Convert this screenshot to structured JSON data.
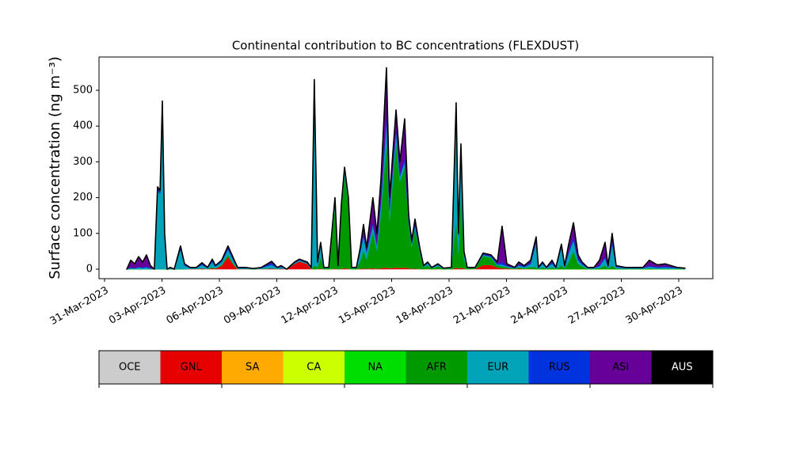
{
  "chart_data": {
    "type": "stacked_area",
    "title": "Continental contribution to BC concentrations (FLEXDUST)",
    "y_label": "Surface concentration (ng m⁻³)",
    "x": [
      1.16,
      1.37,
      1.57,
      1.78,
      1.99,
      2.19,
      2.4,
      2.6,
      2.77,
      2.9,
      3.02,
      3.14,
      3.27,
      3.43,
      3.64,
      3.97,
      4.18,
      4.47,
      4.8,
      5.09,
      5.38,
      5.63,
      5.79,
      6.12,
      6.45,
      6.74,
      6.95,
      7.36,
      7.78,
      8.19,
      8.73,
      9.02,
      9.23,
      9.52,
      9.93,
      10.18,
      10.59,
      10.8,
      10.96,
      11.13,
      11.29,
      11.46,
      11.71,
      12.04,
      12.2,
      12.37,
      12.54,
      12.74,
      12.91,
      13.16,
      13.36,
      13.53,
      13.69,
      14.02,
      14.23,
      14.44,
      14.73,
      14.89,
      15.23,
      15.43,
      15.68,
      15.89,
      16.05,
      16.22,
      16.47,
      16.67,
      16.88,
      17.09,
      17.42,
      17.71,
      18.12,
      18.37,
      18.49,
      18.62,
      18.78,
      18.95,
      19.36,
      19.78,
      20.19,
      20.52,
      20.77,
      21.02,
      21.43,
      21.64,
      21.93,
      22.26,
      22.55,
      22.67,
      22.88,
      23.09,
      23.38,
      23.58,
      23.87,
      24.04,
      24.25,
      24.5,
      24.74,
      24.95,
      25.24,
      25.57,
      25.86,
      26.15,
      26.31,
      26.52,
      26.73,
      27.22,
      27.64,
      28.13,
      28.46,
      28.88,
      29.29,
      29.91,
      30.33
    ],
    "series": [
      {
        "name": "OCE",
        "color": "#cccccc",
        "values": [
          0,
          0,
          0,
          0,
          0,
          0,
          0,
          0,
          0,
          0,
          0,
          0,
          0,
          0,
          0,
          0,
          0,
          0,
          0,
          0,
          0,
          0,
          0,
          0,
          0,
          0,
          0,
          0,
          0,
          0,
          0,
          0,
          0,
          0,
          0,
          0,
          0,
          0,
          0,
          0,
          0,
          0,
          0,
          0,
          0,
          0,
          0,
          0,
          0,
          0,
          0,
          0,
          0,
          0,
          0,
          0,
          0,
          0,
          0,
          0,
          0,
          0,
          0,
          0,
          0,
          0,
          0,
          0,
          0,
          0,
          0,
          0,
          0,
          0,
          0,
          0,
          0,
          0,
          0,
          0,
          0,
          0,
          0,
          0,
          0,
          0,
          0,
          0,
          0,
          0,
          0,
          0,
          0,
          0,
          0,
          0,
          0,
          0,
          0,
          0,
          0,
          0,
          0,
          0,
          0,
          0,
          0,
          0,
          0,
          0,
          0,
          0,
          0
        ]
      },
      {
        "name": "GNL",
        "color": "#e60000",
        "values": [
          0,
          0,
          0,
          0,
          0,
          0,
          0,
          0,
          0,
          0,
          0,
          0,
          0,
          0,
          0,
          0,
          0,
          1,
          1,
          2,
          1,
          3,
          2,
          10,
          35,
          12,
          1,
          1,
          0,
          1,
          2,
          1,
          2,
          0,
          15,
          22,
          15,
          1,
          0,
          1,
          2,
          0,
          0,
          2,
          0,
          2,
          3,
          2,
          0,
          0,
          2,
          2,
          2,
          3,
          2,
          3,
          5,
          3,
          5,
          4,
          5,
          3,
          2,
          2,
          1,
          0,
          1,
          0,
          1,
          0,
          0,
          5,
          2,
          5,
          2,
          0,
          1,
          12,
          12,
          5,
          3,
          2,
          1,
          2,
          1,
          1,
          0,
          0,
          0,
          0,
          0,
          0,
          0,
          0,
          0,
          0,
          0,
          0,
          0,
          0,
          0,
          0,
          0,
          0,
          0,
          0,
          0,
          0,
          0,
          0,
          0,
          0,
          0
        ]
      },
      {
        "name": "SA",
        "color": "#ffaa00",
        "values": [
          0,
          0,
          0,
          0,
          0,
          0,
          0,
          0,
          0,
          0,
          0,
          0,
          0,
          0,
          0,
          0,
          0,
          0,
          0,
          0,
          0,
          0,
          0,
          0,
          0,
          0,
          0,
          0,
          0,
          0,
          0,
          0,
          0,
          0,
          0,
          0,
          0,
          0,
          0,
          0,
          0,
          0,
          0,
          0,
          0,
          0,
          0,
          0,
          0,
          0,
          0,
          0,
          0,
          0,
          0,
          0,
          0,
          0,
          0,
          0,
          0,
          0,
          0,
          0,
          0,
          0,
          0,
          0,
          0,
          0,
          0,
          0,
          0,
          0,
          0,
          0,
          0,
          0,
          0,
          0,
          0,
          0,
          0,
          0,
          0,
          0,
          0,
          0,
          0,
          0,
          0,
          0,
          0,
          0,
          0,
          0,
          0,
          0,
          0,
          0,
          0,
          0,
          0,
          0,
          0,
          0,
          0,
          0,
          0,
          0,
          0,
          0,
          0
        ]
      },
      {
        "name": "CA",
        "color": "#ccff00",
        "values": [
          0,
          0,
          0,
          0,
          0,
          0,
          0,
          0,
          0,
          0,
          0,
          0,
          0,
          0,
          0,
          0,
          0,
          0,
          0,
          0,
          0,
          0,
          0,
          0,
          0,
          0,
          0,
          0,
          0,
          0,
          0,
          0,
          0,
          0,
          0,
          0,
          0,
          0,
          0,
          0,
          0,
          0,
          0,
          0,
          0,
          0,
          0,
          0,
          0,
          0,
          0,
          0,
          0,
          0,
          0,
          0,
          0,
          0,
          0,
          0,
          0,
          0,
          0,
          0,
          0,
          0,
          0,
          0,
          0,
          0,
          0,
          0,
          0,
          0,
          0,
          0,
          0,
          0,
          0,
          0,
          0,
          0,
          0,
          0,
          0,
          0,
          0,
          0,
          0,
          0,
          0,
          0,
          0,
          0,
          0,
          0,
          0,
          0,
          0,
          0,
          0,
          0,
          0,
          0,
          0,
          0,
          0,
          0,
          0,
          0,
          0,
          0,
          0
        ]
      },
      {
        "name": "NA",
        "color": "#00dd00",
        "values": [
          0,
          0,
          0,
          0,
          0,
          0,
          0,
          0,
          0,
          0,
          0,
          0,
          0,
          0,
          0,
          0,
          0,
          0,
          0,
          0,
          0,
          0,
          0,
          0,
          0,
          0,
          0,
          0,
          0,
          0,
          0,
          0,
          0,
          0,
          0,
          0,
          0,
          0,
          0,
          0,
          0,
          0,
          0,
          0,
          0,
          0,
          0,
          0,
          0,
          0,
          0,
          0,
          0,
          0,
          0,
          0,
          0,
          0,
          0,
          0,
          0,
          0,
          0,
          0,
          0,
          0,
          0,
          0,
          0,
          0,
          0,
          0,
          0,
          0,
          0,
          0,
          0,
          0,
          0,
          0,
          0,
          0,
          0,
          0,
          0,
          0,
          0,
          0,
          0,
          0,
          0,
          0,
          0,
          0,
          0,
          0,
          0,
          0,
          0,
          0,
          0,
          0,
          0,
          0,
          0,
          0,
          0,
          0,
          0,
          0,
          0,
          0,
          0
        ]
      },
      {
        "name": "AFR",
        "color": "#009900",
        "values": [
          0,
          0,
          0,
          0,
          0,
          0,
          0,
          0,
          0,
          0,
          0,
          0,
          0,
          0,
          0,
          0,
          0,
          0,
          0,
          0,
          0,
          2,
          0,
          2,
          5,
          3,
          0,
          0,
          0,
          0,
          0,
          0,
          0,
          0,
          0,
          0,
          0,
          0,
          10,
          5,
          30,
          2,
          2,
          170,
          5,
          160,
          260,
          180,
          2,
          2,
          20,
          50,
          25,
          100,
          50,
          150,
          350,
          130,
          350,
          240,
          280,
          120,
          60,
          110,
          45,
          5,
          10,
          2,
          7,
          1,
          2,
          130,
          40,
          200,
          25,
          2,
          2,
          25,
          20,
          5,
          5,
          3,
          1,
          3,
          2,
          5,
          5,
          1,
          5,
          1,
          5,
          1,
          10,
          3,
          20,
          50,
          15,
          8,
          1,
          1,
          3,
          10,
          2,
          10,
          2,
          1,
          1,
          1,
          2,
          1,
          1,
          1,
          1
        ]
      },
      {
        "name": "EUR",
        "color": "#00a3b8",
        "values": [
          0,
          3,
          2,
          5,
          3,
          5,
          2,
          0,
          220,
          210,
          450,
          95,
          0,
          3,
          0,
          55,
          10,
          2,
          2,
          10,
          2,
          15,
          5,
          8,
          15,
          8,
          2,
          2,
          1,
          2,
          10,
          2,
          4,
          0,
          2,
          3,
          2,
          2,
          500,
          10,
          35,
          2,
          2,
          20,
          3,
          12,
          15,
          12,
          2,
          2,
          25,
          40,
          20,
          20,
          15,
          30,
          60,
          30,
          30,
          15,
          15,
          10,
          8,
          10,
          6,
          3,
          5,
          2,
          4,
          1,
          2,
          310,
          50,
          130,
          18,
          2,
          1,
          3,
          3,
          3,
          5,
          3,
          1,
          5,
          3,
          8,
          70,
          2,
          10,
          2,
          10,
          2,
          50,
          4,
          25,
          30,
          10,
          5,
          2,
          2,
          5,
          20,
          3,
          60,
          4,
          2,
          2,
          2,
          5,
          3,
          4,
          2,
          1
        ]
      },
      {
        "name": "RUS",
        "color": "#0033dd",
        "values": [
          0,
          2,
          1,
          2,
          2,
          3,
          1,
          0,
          5,
          5,
          10,
          3,
          0,
          1,
          0,
          5,
          3,
          1,
          1,
          3,
          1,
          4,
          2,
          3,
          5,
          4,
          1,
          1,
          1,
          1,
          5,
          1,
          2,
          0,
          1,
          1,
          1,
          1,
          10,
          2,
          4,
          1,
          1,
          4,
          1,
          3,
          4,
          3,
          1,
          1,
          5,
          8,
          5,
          7,
          5,
          10,
          18,
          7,
          10,
          6,
          10,
          5,
          3,
          5,
          3,
          1,
          2,
          1,
          2,
          1,
          1,
          10,
          5,
          10,
          3,
          1,
          1,
          2,
          2,
          2,
          7,
          2,
          1,
          3,
          2,
          4,
          5,
          1,
          2,
          1,
          4,
          1,
          4,
          2,
          5,
          10,
          5,
          3,
          1,
          1,
          2,
          5,
          2,
          10,
          2,
          1,
          1,
          1,
          3,
          2,
          3,
          1,
          1
        ]
      },
      {
        "name": "ASI",
        "color": "#660099",
        "values": [
          0,
          20,
          12,
          28,
          15,
          32,
          7,
          0,
          5,
          5,
          10,
          2,
          0,
          1,
          0,
          5,
          2,
          1,
          1,
          3,
          1,
          4,
          1,
          2,
          5,
          3,
          1,
          1,
          0,
          1,
          5,
          1,
          2,
          0,
          2,
          2,
          2,
          1,
          10,
          2,
          4,
          0,
          0,
          4,
          1,
          3,
          3,
          3,
          0,
          0,
          8,
          25,
          8,
          70,
          28,
          57,
          130,
          30,
          50,
          35,
          110,
          12,
          7,
          13,
          5,
          1,
          2,
          0,
          1,
          0,
          0,
          10,
          3,
          5,
          2,
          0,
          0,
          3,
          3,
          5,
          100,
          5,
          1,
          7,
          2,
          7,
          10,
          1,
          3,
          1,
          6,
          1,
          6,
          1,
          20,
          40,
          10,
          4,
          1,
          1,
          15,
          40,
          3,
          20,
          2,
          1,
          1,
          1,
          15,
          6,
          7,
          1,
          0
        ]
      },
      {
        "name": "AUS",
        "color": "#000000",
        "values": [
          0,
          0,
          0,
          0,
          0,
          0,
          0,
          0,
          0,
          0,
          0,
          0,
          0,
          0,
          0,
          0,
          0,
          0,
          0,
          0,
          0,
          0,
          0,
          0,
          0,
          0,
          0,
          0,
          0,
          0,
          0,
          0,
          0,
          0,
          0,
          0,
          0,
          0,
          0,
          0,
          0,
          0,
          0,
          0,
          0,
          0,
          0,
          0,
          0,
          0,
          0,
          0,
          0,
          0,
          0,
          0,
          0,
          0,
          0,
          0,
          0,
          0,
          0,
          0,
          0,
          0,
          0,
          0,
          0,
          0,
          0,
          0,
          0,
          0,
          0,
          0,
          0,
          0,
          0,
          0,
          0,
          0,
          0,
          0,
          0,
          0,
          0,
          0,
          0,
          0,
          0,
          0,
          0,
          0,
          0,
          0,
          0,
          0,
          0,
          0,
          0,
          0,
          0,
          0,
          0,
          0,
          0,
          0,
          0,
          0,
          0,
          0,
          0
        ]
      }
    ],
    "xlim": [
      -0.29,
      31.78
    ],
    "xticks": [
      {
        "value": 0,
        "label": "31-Mar-2023"
      },
      {
        "value": 3,
        "label": "03-Apr-2023"
      },
      {
        "value": 6,
        "label": "06-Apr-2023"
      },
      {
        "value": 9,
        "label": "09-Apr-2023"
      },
      {
        "value": 12,
        "label": "12-Apr-2023"
      },
      {
        "value": 15,
        "label": "15-Apr-2023"
      },
      {
        "value": 18,
        "label": "18-Apr-2023"
      },
      {
        "value": 21,
        "label": "21-Apr-2023"
      },
      {
        "value": 24,
        "label": "24-Apr-2023"
      },
      {
        "value": 27,
        "label": "27-Apr-2023"
      },
      {
        "value": 30,
        "label": "30-Apr-2023"
      }
    ],
    "ylim": [
      -26.5,
      593
    ],
    "yticks": [
      0,
      100,
      200,
      300,
      400,
      500
    ],
    "grid": false
  }
}
